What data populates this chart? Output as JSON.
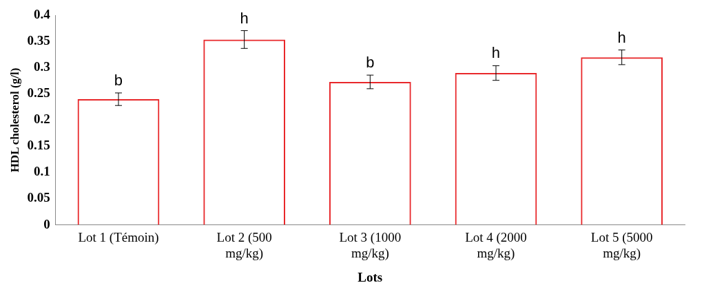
{
  "chart_data": {
    "type": "bar",
    "xlabel": "Lots",
    "ylabel": "HDL cholesterol (g/l)",
    "categories": [
      "Lot 1 (Témoin)",
      "Lot 2 (500 mg/kg)",
      "Lot 3 (1000 mg/kg)",
      "Lot 4 (2000 mg/kg)",
      "Lot 5 (5000 mg/kg)"
    ],
    "values": [
      0.24,
      0.354,
      0.273,
      0.29,
      0.32
    ],
    "errors": [
      0.012,
      0.017,
      0.013,
      0.014,
      0.014
    ],
    "color": "#e8272a",
    "ylim": [
      0,
      0.4
    ],
    "yticks": [
      0,
      0.05,
      0.1,
      0.15,
      0.2,
      0.25,
      0.3,
      0.35,
      0.4
    ],
    "annotations": [
      "b",
      "h",
      "b",
      "h",
      "h"
    ],
    "grid": false,
    "legend": false
  }
}
